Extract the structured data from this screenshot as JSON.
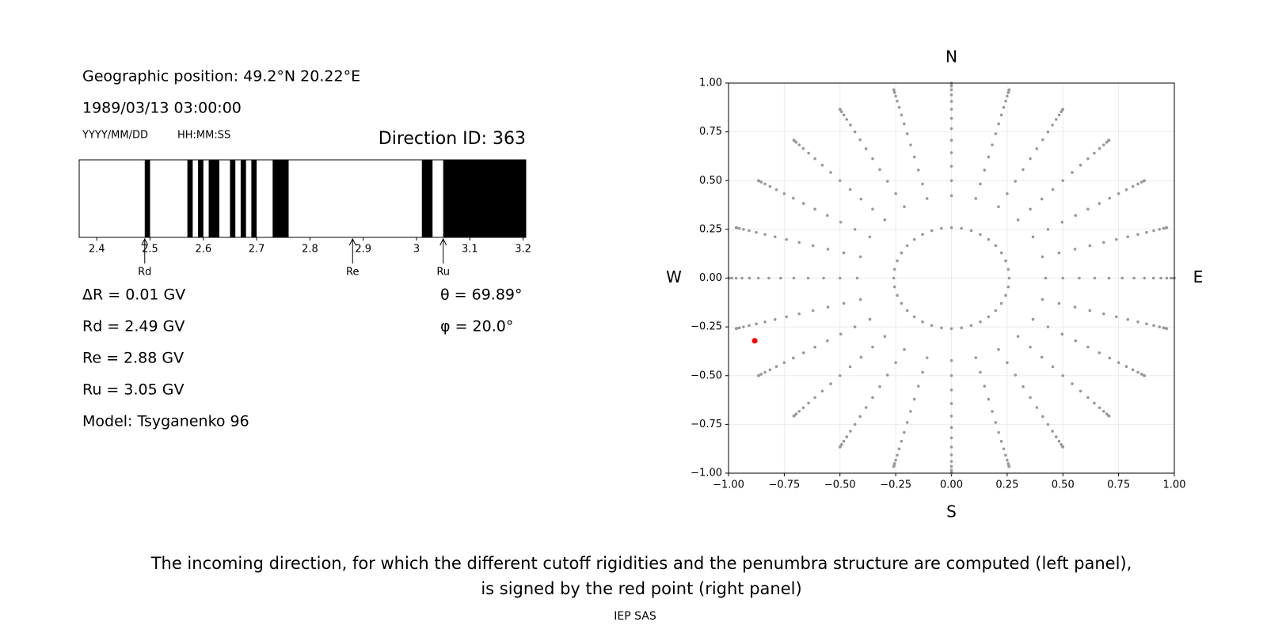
{
  "geo_position": "Geographic position: 49.2°N 20.22°E",
  "datetime": "1989/03/13 03:00:00",
  "date_format": "YYYY/MM/DD",
  "time_format": "HH:MM:SS",
  "direction_id": "Direction ID: 363",
  "delta_r": "ΔR = 0.01 GV",
  "cutoffs": [
    {
      "name": "Rd",
      "value": 2.49,
      "label": "Rd = 2.49 GV"
    },
    {
      "name": "Re",
      "value": 2.88,
      "label": "Re = 2.88 GV"
    },
    {
      "name": "Ru",
      "value": 3.05,
      "label": "Ru = 3.05 GV"
    }
  ],
  "model": "Model: Tsyganenko 96",
  "direction": {
    "theta": {
      "value": 69.89,
      "label": "θ = 69.89°"
    },
    "phi": {
      "value": 20.0,
      "label": "φ = 20.0°"
    }
  },
  "caption": [
    "The incoming direction, for which the different cutoff rigidities and the penumbra structure are computed (left panel),",
    "is signed by the red point (right panel)"
  ],
  "footer": "IEP SAS",
  "chart_data": [
    {
      "type": "penumbra",
      "xlim": [
        2.367,
        3.205
      ],
      "xticks": [
        2.4,
        2.5,
        2.6,
        2.7,
        2.8,
        2.9,
        3.0,
        3.1,
        3.2
      ],
      "color": "#000000",
      "bands": [
        [
          2.49,
          2.5
        ],
        [
          2.57,
          2.58
        ],
        [
          2.59,
          2.6
        ],
        [
          2.61,
          2.63
        ],
        [
          2.65,
          2.66
        ],
        [
          2.67,
          2.68
        ],
        [
          2.69,
          2.7
        ],
        [
          2.73,
          2.76
        ],
        [
          3.01,
          3.03
        ],
        [
          3.05,
          3.205
        ]
      ]
    },
    {
      "type": "scatter",
      "xlim": [
        -1,
        1
      ],
      "ylim": [
        -1,
        1
      ],
      "grid": true,
      "color": "#999999",
      "selected_color": "#ff0000",
      "xticks": [
        {
          "value": -1,
          "label": "−1.00"
        },
        {
          "value": -0.75,
          "label": "−0.75"
        },
        {
          "value": -0.5,
          "label": "−0.50"
        },
        {
          "value": -0.25,
          "label": "−0.25"
        },
        {
          "value": 0,
          "label": "0.00"
        },
        {
          "value": 0.25,
          "label": "0.25"
        },
        {
          "value": 0.5,
          "label": "0.50"
        },
        {
          "value": 0.75,
          "label": "0.75"
        },
        {
          "value": 1,
          "label": "1.00"
        }
      ],
      "yticks": [
        {
          "value": -1,
          "label": "−1.00"
        },
        {
          "value": -0.75,
          "label": "−0.75"
        },
        {
          "value": -0.5,
          "label": "−0.50"
        },
        {
          "value": -0.25,
          "label": "−0.25"
        },
        {
          "value": 0,
          "label": "0.00"
        },
        {
          "value": 0.25,
          "label": "0.25"
        },
        {
          "value": 0.5,
          "label": "0.50"
        },
        {
          "value": 0.75,
          "label": "0.75"
        },
        {
          "value": 1,
          "label": "1.00"
        }
      ],
      "compass": {
        "north": "N",
        "south": "S",
        "west": "W",
        "east": "E"
      },
      "zenith": [
        25,
        30,
        35,
        40,
        45,
        50,
        55,
        60,
        65,
        70,
        75,
        80,
        85,
        90
      ],
      "azimuth": [
        0,
        15,
        30,
        45,
        60,
        75,
        90,
        105,
        120,
        135,
        150,
        165,
        180,
        195,
        210,
        225,
        240,
        255,
        270,
        285,
        300,
        315,
        330,
        345
      ],
      "inner_zenith": 15,
      "inner_azimuth": [
        0,
        10,
        20,
        30,
        40,
        50,
        60,
        70,
        80,
        90,
        100,
        110,
        120,
        130,
        140,
        150,
        160,
        170,
        180,
        190,
        200,
        210,
        220,
        230,
        240,
        250,
        260,
        270,
        280,
        290,
        300,
        310,
        320,
        330,
        340,
        350
      ]
    }
  ]
}
